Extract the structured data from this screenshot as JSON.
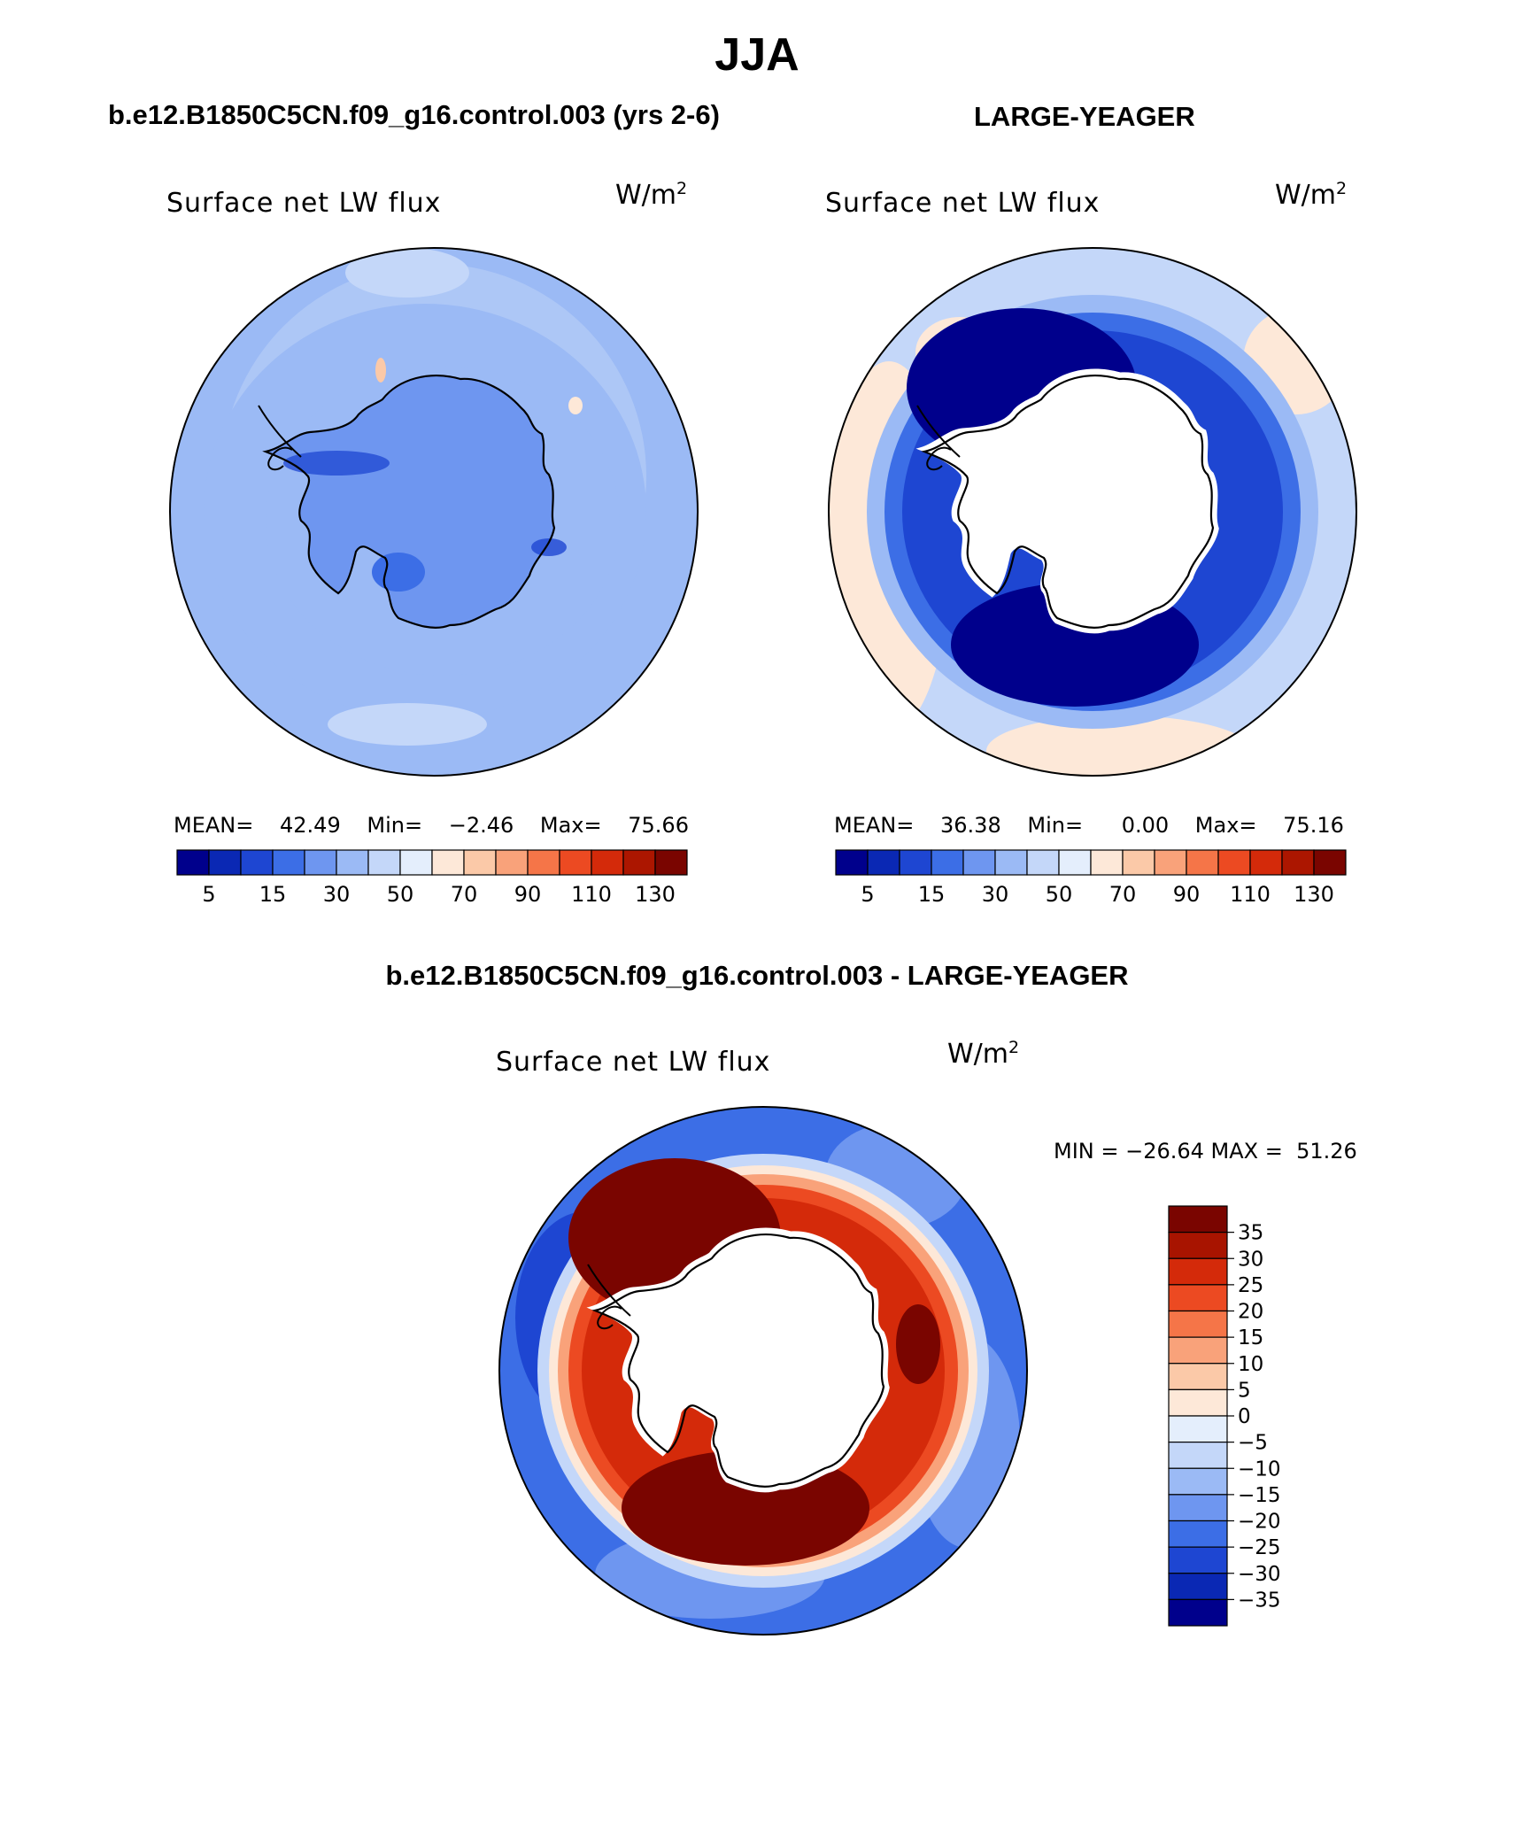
{
  "title": "JJA",
  "panels": [
    {
      "id": "left",
      "header": "b.e12.B1850C5CN.f09_g16.control.003 (yrs 2-6)",
      "plot_title": "Surface net LW flux",
      "units_base": "W/m",
      "units_exp": "2",
      "stats": {
        "mean_label": "MEAN=",
        "mean": "42.49",
        "min_label": "Min=",
        "min": "−2.46",
        "max_label": "Max=",
        "max": "75.66"
      }
    },
    {
      "id": "right",
      "header": "LARGE-YEAGER",
      "plot_title": "Surface net LW flux",
      "units_base": "W/m",
      "units_exp": "2",
      "stats": {
        "mean_label": "MEAN=",
        "mean": "36.38",
        "min_label": "Min=",
        "min": "0.00",
        "max_label": "Max=",
        "max": "75.16"
      }
    },
    {
      "id": "diff",
      "header": "b.e12.B1850C5CN.f09_g16.control.003 - LARGE-YEAGER",
      "plot_title": "Surface net LW flux",
      "units_base": "W/m",
      "units_exp": "2",
      "stats_text": "MIN = −26.64 MAX =  51.26"
    }
  ],
  "abs_colorbar": {
    "colors": [
      "#00008c",
      "#0a28b4",
      "#1e46d2",
      "#3c6ee6",
      "#6e96f0",
      "#9bbaf5",
      "#c4d7f9",
      "#e4eefc",
      "#fde8d8",
      "#fbc9a8",
      "#f9a27a",
      "#f57548",
      "#ec4a22",
      "#d42a0a",
      "#ac1600",
      "#7a0500"
    ],
    "tick_labels": [
      "5",
      "15",
      "30",
      "50",
      "70",
      "90",
      "110",
      "130"
    ]
  },
  "diff_colorbar": {
    "colors": [
      "#7a0500",
      "#a81400",
      "#d42a0a",
      "#ec4a22",
      "#f57548",
      "#f9a27a",
      "#fbc9a8",
      "#fde8d8",
      "#e4eefc",
      "#c4d7f9",
      "#9bbaf5",
      "#6e96f0",
      "#3c6ee6",
      "#1e46d2",
      "#0a28b4",
      "#00008c"
    ],
    "tick_labels": [
      "35",
      "30",
      "25",
      "20",
      "15",
      "10",
      "5",
      "0",
      "−5",
      "−10",
      "−15",
      "−20",
      "−25",
      "−30",
      "−35"
    ]
  }
}
